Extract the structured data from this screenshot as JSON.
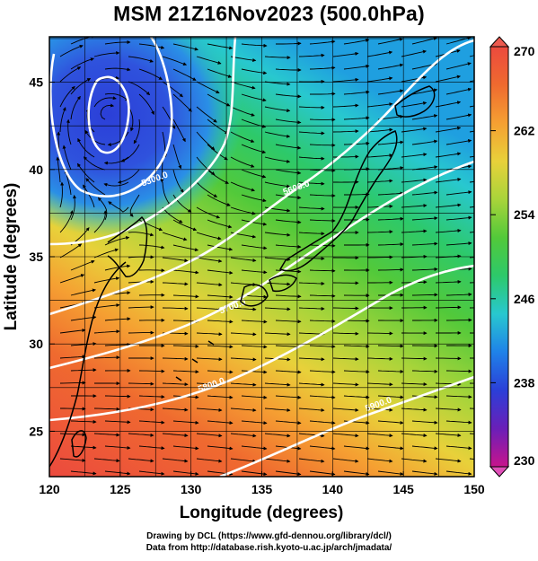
{
  "title": "MSM 21Z16Nov2023 (500.0hPa)",
  "axes": {
    "xlabel": "Longitude (degrees)",
    "ylabel": "Latitude  (degrees)",
    "xlim": [
      120,
      150
    ],
    "ylim": [
      22.4,
      47.6
    ],
    "xticks": [
      "120",
      "125",
      "130",
      "135",
      "140",
      "145",
      "150"
    ],
    "yticks": [
      "25",
      "30",
      "35",
      "40",
      "45"
    ],
    "grid": true
  },
  "colorbar": {
    "min": 230,
    "max": 270,
    "labels": [
      "270",
      "262",
      "254",
      "246",
      "238",
      "230"
    ],
    "colors": [
      "#c8148c",
      "#6a1fb8",
      "#2b3fd8",
      "#1f82e8",
      "#28c8cf",
      "#2dc96a",
      "#52c93a",
      "#a8d43a",
      "#e8d13a",
      "#f5a032",
      "#ef6a2f",
      "#ec4a3e"
    ]
  },
  "contours": [
    {
      "label": "5300.0",
      "lon": 127.5,
      "lat": 39.3
    },
    {
      "label": "5600.0",
      "lon": 137.5,
      "lat": 38.8
    },
    {
      "label": "5700.0",
      "lon": 133.0,
      "lat": 32.0
    },
    {
      "label": "5800.0",
      "lon": 131.5,
      "lat": 27.5
    },
    {
      "label": "5900.0",
      "lon": 143.3,
      "lat": 26.4
    }
  ],
  "credits": {
    "line1": "Drawing by DCL (https://www.gfd-dennou.org/library/dcl/)",
    "line2": "Data from http://database.rish.kyoto-u.ac.jp/arch/jmadata/"
  }
}
